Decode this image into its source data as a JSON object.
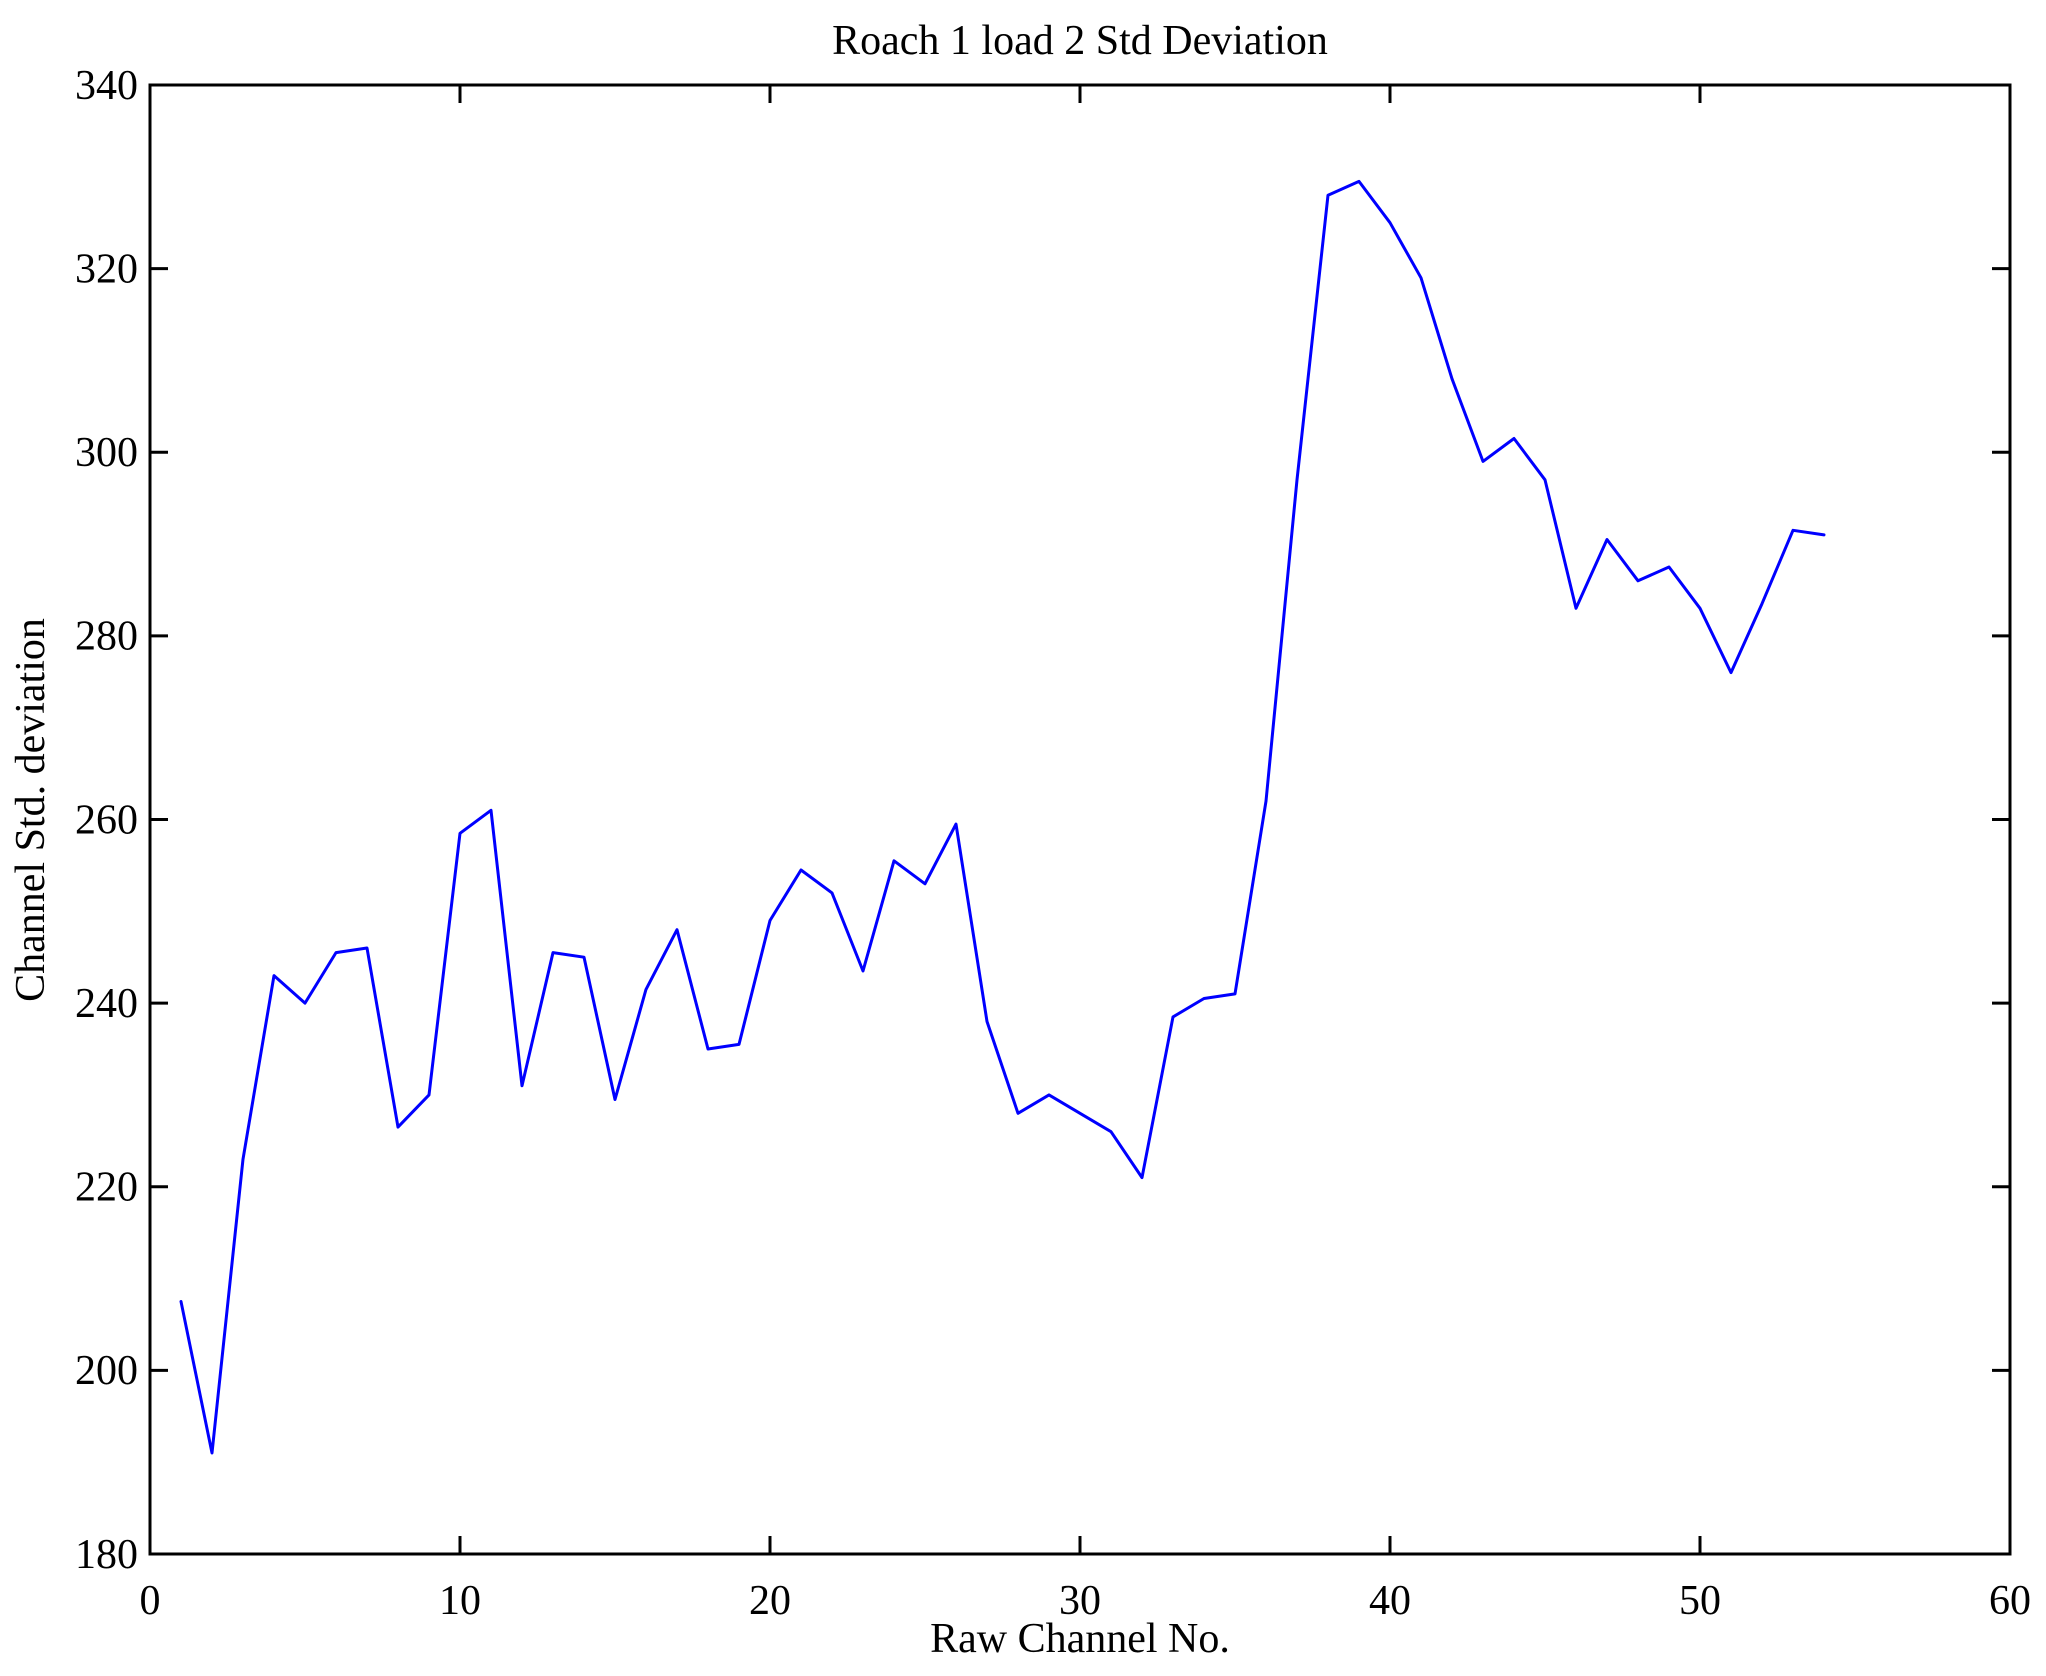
{
  "figure": {
    "title": "Roach 1 load 2 Std Deviation",
    "xlabel": "Raw Channel No.",
    "ylabel": "Channel Std. deviation"
  },
  "chart_data": {
    "type": "line",
    "title": "Roach 1 load 2 Std Deviation",
    "xlabel": "Raw Channel No.",
    "ylabel": "Channel Std. deviation",
    "xlim": [
      0,
      60
    ],
    "ylim": [
      180,
      340
    ],
    "xticks": [
      0,
      10,
      20,
      30,
      40,
      50,
      60
    ],
    "yticks": [
      180,
      200,
      220,
      240,
      260,
      280,
      300,
      320,
      340
    ],
    "grid": false,
    "legend": "none",
    "line_color": "#0000ff",
    "axis_color": "#000000",
    "x": [
      1,
      2,
      3,
      4,
      5,
      6,
      7,
      8,
      9,
      10,
      11,
      12,
      13,
      14,
      15,
      16,
      17,
      18,
      19,
      20,
      21,
      22,
      23,
      24,
      25,
      26,
      27,
      28,
      29,
      30,
      31,
      32,
      33,
      34,
      35,
      36,
      37,
      38,
      39,
      40,
      41,
      42,
      43,
      44,
      45,
      46,
      47,
      48,
      49,
      50,
      51,
      52,
      53,
      54
    ],
    "values": [
      207.5,
      191,
      223,
      243,
      240,
      245.5,
      246,
      226.5,
      230,
      258.5,
      261,
      231,
      245.5,
      245,
      229.5,
      241.5,
      248,
      235,
      235.5,
      249,
      254.5,
      252,
      243.5,
      255.5,
      253,
      259.5,
      238,
      228,
      230,
      228,
      226,
      221,
      238.5,
      240.5,
      241,
      262,
      297,
      328,
      329.5,
      325,
      319,
      308,
      299,
      301.5,
      297,
      283,
      290.5,
      286,
      287.5,
      283,
      276,
      283.5,
      291.5,
      291
    ]
  }
}
